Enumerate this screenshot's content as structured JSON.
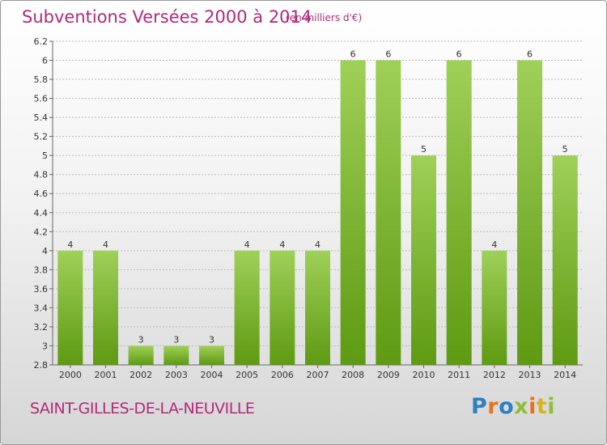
{
  "header": {
    "title": "Subventions Versées 2000 à 2014",
    "unit_note": "(en milliers d'€)"
  },
  "footer": {
    "commune": "SAINT-GILLES-DE-LA-NEUVILLE",
    "logo_text": "Proxiti",
    "logo_letters": [
      {
        "ch": "P",
        "color": "#2f7fc1"
      },
      {
        "ch": "r",
        "color": "#e8731c"
      },
      {
        "ch": "o",
        "color": "#2f7fc1"
      },
      {
        "ch": "x",
        "color": "#8dbf3c"
      },
      {
        "ch": "i",
        "color": "#e8731c"
      },
      {
        "ch": "t",
        "color": "#d9b21d"
      },
      {
        "ch": "i",
        "color": "#8dbf3c"
      }
    ]
  },
  "colors": {
    "title": "#b22a78",
    "bar_top": "#9fd058",
    "bar_bottom": "#5e9a12",
    "grid": "#bbbbbb",
    "axis_text": "#333333"
  },
  "chart_data": {
    "type": "bar",
    "categories": [
      "2000",
      "2001",
      "2002",
      "2003",
      "2004",
      "2005",
      "2006",
      "2007",
      "2008",
      "2009",
      "2010",
      "2011",
      "2012",
      "2013",
      "2014"
    ],
    "values": [
      4,
      4,
      3,
      3,
      3,
      4,
      4,
      4,
      6,
      6,
      5,
      6,
      4,
      6,
      5
    ],
    "data_labels": [
      "4",
      "4",
      "3",
      "3",
      "3",
      "4",
      "4",
      "4",
      "6",
      "6",
      "5",
      "6",
      "4",
      "6",
      "5"
    ],
    "y_ticks": [
      {
        "label": "2.8",
        "pos": 0
      },
      {
        "label": "3",
        "pos": 1
      },
      {
        "label": "3.2",
        "pos": 2
      },
      {
        "label": "3.4",
        "pos": 3
      },
      {
        "label": "3.6",
        "pos": 4
      },
      {
        "label": "3.8",
        "pos": 5
      },
      {
        "label": "4",
        "pos": 6
      },
      {
        "label": "4.2",
        "pos": 7
      },
      {
        "label": "4.4",
        "pos": 8
      },
      {
        "label": "4.6",
        "pos": 9
      },
      {
        "label": "4.8",
        "pos": 10
      },
      {
        "label": "5",
        "pos": 11
      },
      {
        "label": "5.2",
        "pos": 12
      },
      {
        "label": "5.4",
        "pos": 13
      },
      {
        "label": "5.6",
        "pos": 14
      },
      {
        "label": "5.8",
        "pos": 15
      },
      {
        "label": "6",
        "pos": 16
      },
      {
        "label": "6.2",
        "pos": 17
      }
    ],
    "y_scale": {
      "baseline_value": 2.8,
      "steps": [
        [
          2.8,
          0
        ],
        [
          3,
          1
        ],
        [
          4,
          6
        ],
        [
          5,
          11
        ],
        [
          6,
          16
        ],
        [
          6.2,
          17
        ]
      ]
    },
    "grid": true,
    "legend": "none"
  }
}
